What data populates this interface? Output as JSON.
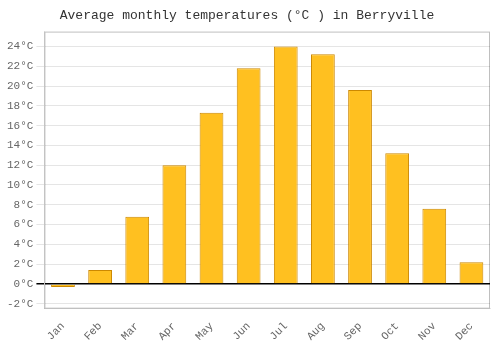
{
  "chart_data": {
    "type": "bar",
    "title": "Average monthly temperatures (°C ) in Berryville",
    "categories": [
      "Jan",
      "Feb",
      "Mar",
      "Apr",
      "May",
      "Jun",
      "Jul",
      "Aug",
      "Sep",
      "Oct",
      "Nov",
      "Dec"
    ],
    "values": [
      -0.3,
      1.4,
      6.8,
      12.0,
      17.3,
      21.8,
      24.0,
      23.2,
      19.6,
      13.2,
      7.6,
      2.2
    ],
    "color": "#FFC020",
    "ylim": [
      -2.5,
      25.5
    ],
    "yticks": [
      {
        "value": -2,
        "label": "-2°C"
      },
      {
        "value": 0,
        "label": "0°C"
      },
      {
        "value": 2,
        "label": "2°C"
      },
      {
        "value": 4,
        "label": "4°C"
      },
      {
        "value": 6,
        "label": "6°C"
      },
      {
        "value": 8,
        "label": "8°C"
      },
      {
        "value": 10,
        "label": "10°C"
      },
      {
        "value": 12,
        "label": "12°C"
      },
      {
        "value": 14,
        "label": "14°C"
      },
      {
        "value": 16,
        "label": "16°C"
      },
      {
        "value": 18,
        "label": "18°C"
      },
      {
        "value": 20,
        "label": "20°C"
      },
      {
        "value": 22,
        "label": "22°C"
      },
      {
        "value": 24,
        "label": "24°C"
      }
    ],
    "grid": true
  }
}
